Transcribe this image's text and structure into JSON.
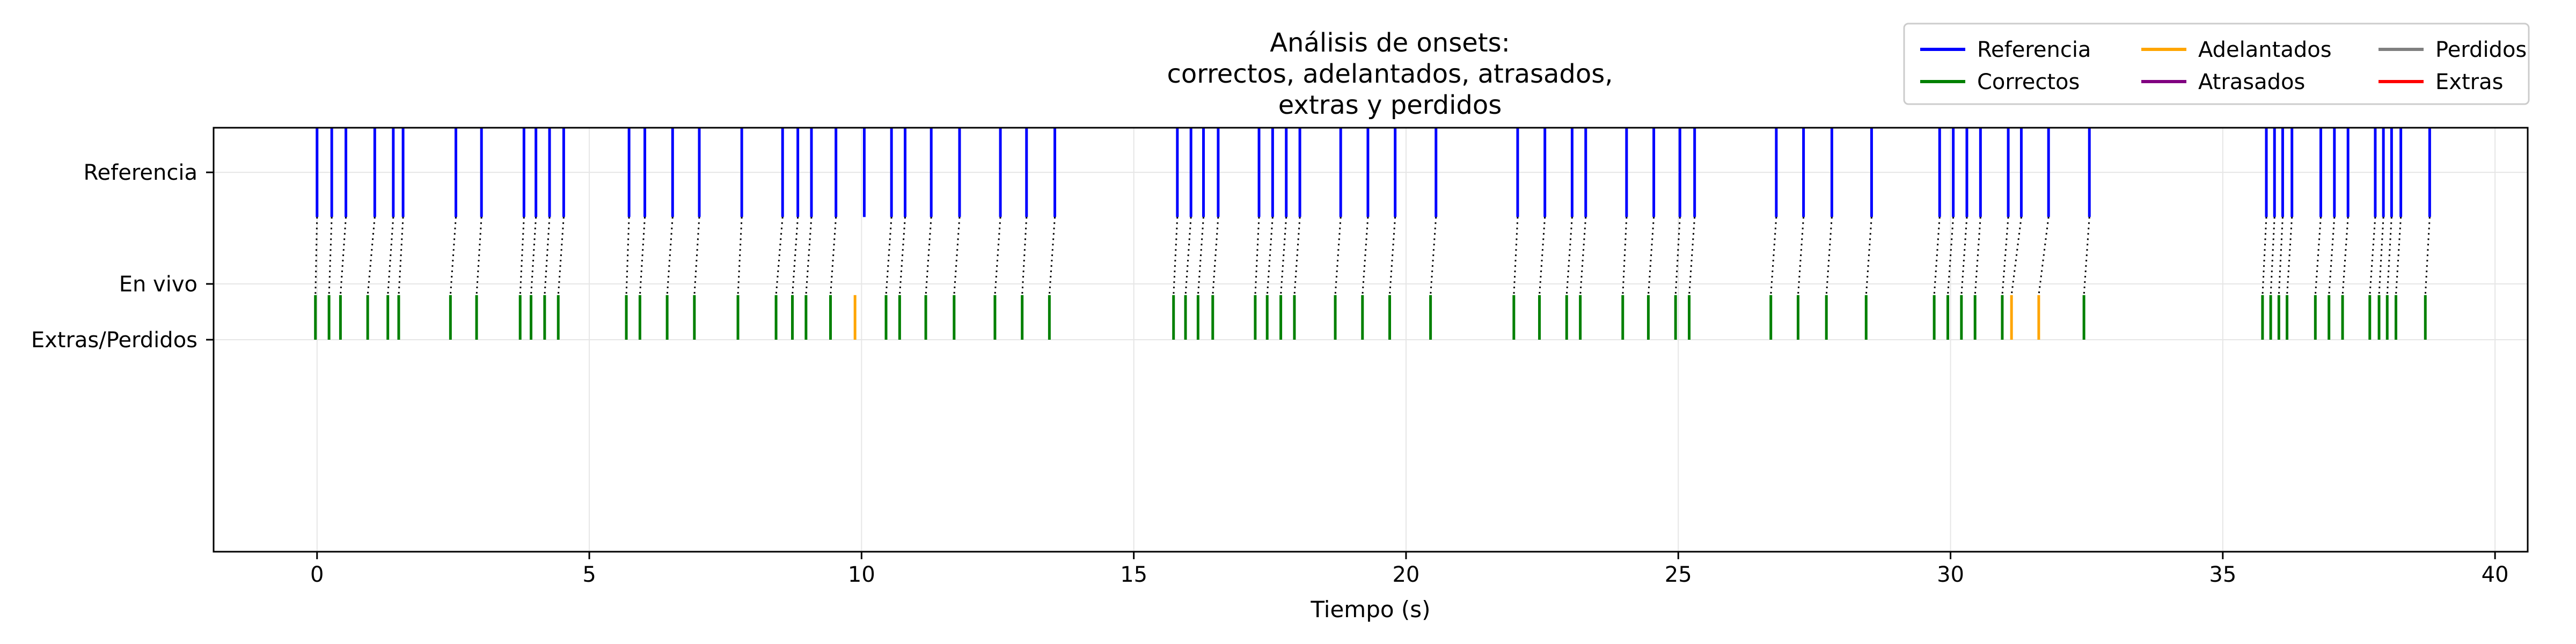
{
  "chart_data": {
    "type": "event-raster",
    "title_lines": [
      "Análisis de onsets:",
      "correctos, adelantados, atrasados,",
      "extras y perdidos"
    ],
    "xlabel": "Tiempo (s)",
    "ylabel": "",
    "xlim": [
      -1.9,
      40.6
    ],
    "xticks": [
      0,
      5,
      10,
      15,
      20,
      25,
      30,
      35,
      40
    ],
    "xtick_labels": [
      "0",
      "5",
      "10",
      "15",
      "20",
      "25",
      "30",
      "35",
      "40"
    ],
    "yticks": [
      {
        "label": "Referencia",
        "value": 3.0
      },
      {
        "label": "En vivo",
        "value": 2.0
      },
      {
        "label": "Extras/Perdidos",
        "value": 1.5
      }
    ],
    "ylim": [
      -0.4,
      3.4
    ],
    "grid": true,
    "legend": {
      "placement": "top-right, outside plot",
      "entries": [
        {
          "label": "Referencia",
          "color": "#0000ff"
        },
        {
          "label": "Correctos",
          "color": "#008000"
        },
        {
          "label": "Adelantados",
          "color": "#ffa500"
        },
        {
          "label": "Atrasados",
          "color": "#800080"
        },
        {
          "label": "Perdidos",
          "color": "#808080"
        },
        {
          "label": "Extras",
          "color": "#ff0000"
        }
      ]
    },
    "colors": {
      "Referencia": "#0000ff",
      "Correctos": "#008000",
      "Adelantados": "#ffa500",
      "Atrasados": "#800080",
      "Perdidos": "#808080",
      "Extras": "#ff0000",
      "connector": "#000000"
    },
    "reference_band": [
      2.6,
      3.4
    ],
    "live_band": [
      1.5,
      1.9
    ],
    "reference_onsets": [
      0.0,
      0.27,
      0.53,
      1.06,
      1.4,
      1.58,
      2.55,
      3.02,
      3.8,
      4.02,
      4.27,
      4.53,
      5.73,
      6.02,
      6.53,
      7.02,
      7.8,
      8.55,
      8.83,
      9.08,
      9.53,
      10.05,
      10.55,
      10.8,
      11.28,
      11.8,
      12.55,
      13.03,
      13.55,
      15.8,
      16.05,
      16.28,
      16.55,
      17.3,
      17.55,
      17.8,
      18.05,
      18.8,
      19.3,
      19.8,
      20.55,
      22.05,
      22.55,
      23.05,
      23.3,
      24.05,
      24.55,
      25.03,
      25.3,
      26.8,
      27.3,
      27.82,
      28.55,
      29.8,
      30.05,
      30.3,
      30.55,
      31.06,
      31.3,
      31.8,
      32.55,
      35.8,
      35.95,
      36.1,
      36.27,
      36.8,
      37.05,
      37.3,
      37.8,
      37.95,
      38.1,
      38.27,
      38.8
    ],
    "live_onsets": [
      {
        "t": -0.03,
        "type": "Correctos",
        "ref": 0.0
      },
      {
        "t": 0.22,
        "type": "Correctos",
        "ref": 0.27
      },
      {
        "t": 0.43,
        "type": "Correctos",
        "ref": 0.53
      },
      {
        "t": 0.93,
        "type": "Correctos",
        "ref": 1.06
      },
      {
        "t": 1.3,
        "type": "Correctos",
        "ref": 1.4
      },
      {
        "t": 1.5,
        "type": "Correctos",
        "ref": 1.58
      },
      {
        "t": 2.45,
        "type": "Correctos",
        "ref": 2.55
      },
      {
        "t": 2.93,
        "type": "Correctos",
        "ref": 3.02
      },
      {
        "t": 3.73,
        "type": "Correctos",
        "ref": 3.8
      },
      {
        "t": 3.93,
        "type": "Correctos",
        "ref": 4.02
      },
      {
        "t": 4.18,
        "type": "Correctos",
        "ref": 4.27
      },
      {
        "t": 4.43,
        "type": "Correctos",
        "ref": 4.53
      },
      {
        "t": 5.68,
        "type": "Correctos",
        "ref": 5.73
      },
      {
        "t": 5.93,
        "type": "Correctos",
        "ref": 6.02
      },
      {
        "t": 6.43,
        "type": "Correctos",
        "ref": 6.53
      },
      {
        "t": 6.93,
        "type": "Correctos",
        "ref": 7.02
      },
      {
        "t": 7.73,
        "type": "Correctos",
        "ref": 7.8
      },
      {
        "t": 8.43,
        "type": "Correctos",
        "ref": 8.55
      },
      {
        "t": 8.73,
        "type": "Correctos",
        "ref": 8.83
      },
      {
        "t": 8.98,
        "type": "Correctos",
        "ref": 9.08
      },
      {
        "t": 9.43,
        "type": "Correctos",
        "ref": 9.53
      },
      {
        "t": 9.88,
        "type": "Adelantados",
        "ref": null
      },
      {
        "t": 10.45,
        "type": "Correctos",
        "ref": 10.55
      },
      {
        "t": 10.7,
        "type": "Correctos",
        "ref": 10.8
      },
      {
        "t": 11.18,
        "type": "Correctos",
        "ref": 11.28
      },
      {
        "t": 11.7,
        "type": "Correctos",
        "ref": 11.8
      },
      {
        "t": 12.45,
        "type": "Correctos",
        "ref": 12.55
      },
      {
        "t": 12.95,
        "type": "Correctos",
        "ref": 13.03
      },
      {
        "t": 13.45,
        "type": "Correctos",
        "ref": 13.55
      },
      {
        "t": 15.73,
        "type": "Correctos",
        "ref": 15.8
      },
      {
        "t": 15.95,
        "type": "Correctos",
        "ref": 16.05
      },
      {
        "t": 16.18,
        "type": "Correctos",
        "ref": 16.28
      },
      {
        "t": 16.45,
        "type": "Correctos",
        "ref": 16.55
      },
      {
        "t": 17.23,
        "type": "Correctos",
        "ref": 17.3
      },
      {
        "t": 17.45,
        "type": "Correctos",
        "ref": 17.55
      },
      {
        "t": 17.7,
        "type": "Correctos",
        "ref": 17.8
      },
      {
        "t": 17.95,
        "type": "Correctos",
        "ref": 18.05
      },
      {
        "t": 18.7,
        "type": "Correctos",
        "ref": 18.8
      },
      {
        "t": 19.2,
        "type": "Correctos",
        "ref": 19.3
      },
      {
        "t": 19.7,
        "type": "Correctos",
        "ref": 19.8
      },
      {
        "t": 20.45,
        "type": "Correctos",
        "ref": 20.55
      },
      {
        "t": 21.98,
        "type": "Correctos",
        "ref": 22.05
      },
      {
        "t": 22.45,
        "type": "Correctos",
        "ref": 22.55
      },
      {
        "t": 22.95,
        "type": "Correctos",
        "ref": 23.05
      },
      {
        "t": 23.2,
        "type": "Correctos",
        "ref": 23.3
      },
      {
        "t": 23.98,
        "type": "Correctos",
        "ref": 24.05
      },
      {
        "t": 24.45,
        "type": "Correctos",
        "ref": 24.55
      },
      {
        "t": 24.95,
        "type": "Correctos",
        "ref": 25.03
      },
      {
        "t": 25.2,
        "type": "Correctos",
        "ref": 25.3
      },
      {
        "t": 26.7,
        "type": "Correctos",
        "ref": 26.8
      },
      {
        "t": 27.2,
        "type": "Correctos",
        "ref": 27.3
      },
      {
        "t": 27.72,
        "type": "Correctos",
        "ref": 27.82
      },
      {
        "t": 28.45,
        "type": "Correctos",
        "ref": 28.55
      },
      {
        "t": 29.7,
        "type": "Correctos",
        "ref": 29.8
      },
      {
        "t": 29.95,
        "type": "Correctos",
        "ref": 30.05
      },
      {
        "t": 30.2,
        "type": "Correctos",
        "ref": 30.3
      },
      {
        "t": 30.45,
        "type": "Correctos",
        "ref": 30.55
      },
      {
        "t": 30.95,
        "type": "Correctos",
        "ref": 31.06
      },
      {
        "t": 31.12,
        "type": "Adelantados",
        "ref": 31.3
      },
      {
        "t": 31.62,
        "type": "Adelantados",
        "ref": 31.8
      },
      {
        "t": 32.45,
        "type": "Correctos",
        "ref": 32.55
      },
      {
        "t": 35.73,
        "type": "Correctos",
        "ref": 35.8
      },
      {
        "t": 35.88,
        "type": "Correctos",
        "ref": 35.95
      },
      {
        "t": 36.03,
        "type": "Correctos",
        "ref": 36.1
      },
      {
        "t": 36.18,
        "type": "Correctos",
        "ref": 36.27
      },
      {
        "t": 36.7,
        "type": "Correctos",
        "ref": 36.8
      },
      {
        "t": 36.95,
        "type": "Correctos",
        "ref": 37.05
      },
      {
        "t": 37.2,
        "type": "Correctos",
        "ref": 37.3
      },
      {
        "t": 37.7,
        "type": "Correctos",
        "ref": 37.8
      },
      {
        "t": 37.87,
        "type": "Correctos",
        "ref": 37.95
      },
      {
        "t": 38.02,
        "type": "Correctos",
        "ref": 38.1
      },
      {
        "t": 38.18,
        "type": "Correctos",
        "ref": 38.27
      },
      {
        "t": 38.72,
        "type": "Correctos",
        "ref": 38.8
      }
    ]
  }
}
